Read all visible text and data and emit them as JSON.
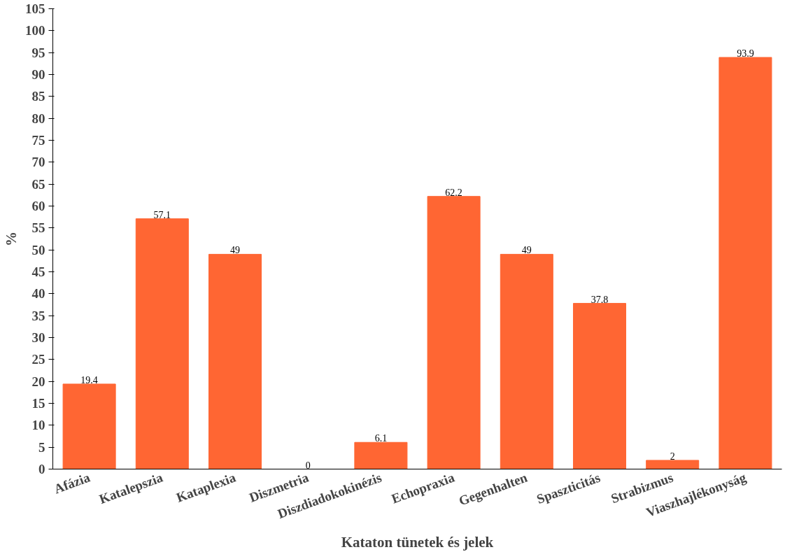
{
  "chart_data": {
    "type": "bar",
    "xlabel": "Kataton tünetek és jelek",
    "ylabel": "%",
    "categories": [
      "Afázia",
      "Katalepszia",
      "Kataplexia",
      "Diszmetria",
      "Diszdiadokokinézis",
      "Echopraxia",
      "Gegenhalten",
      "Spaszticitás",
      "Strabizmus",
      "Viaszhajlékonyság"
    ],
    "values": [
      19.4,
      57.1,
      49,
      0,
      6.1,
      62.2,
      49,
      37.8,
      2,
      93.9
    ],
    "color": "#ff6633",
    "ylim": [
      0,
      105
    ],
    "yticks": [
      0,
      5,
      10,
      15,
      20,
      25,
      30,
      35,
      40,
      45,
      50,
      55,
      60,
      65,
      70,
      75,
      80,
      85,
      90,
      95,
      100,
      105
    ],
    "data_labels": true,
    "grid": false
  }
}
